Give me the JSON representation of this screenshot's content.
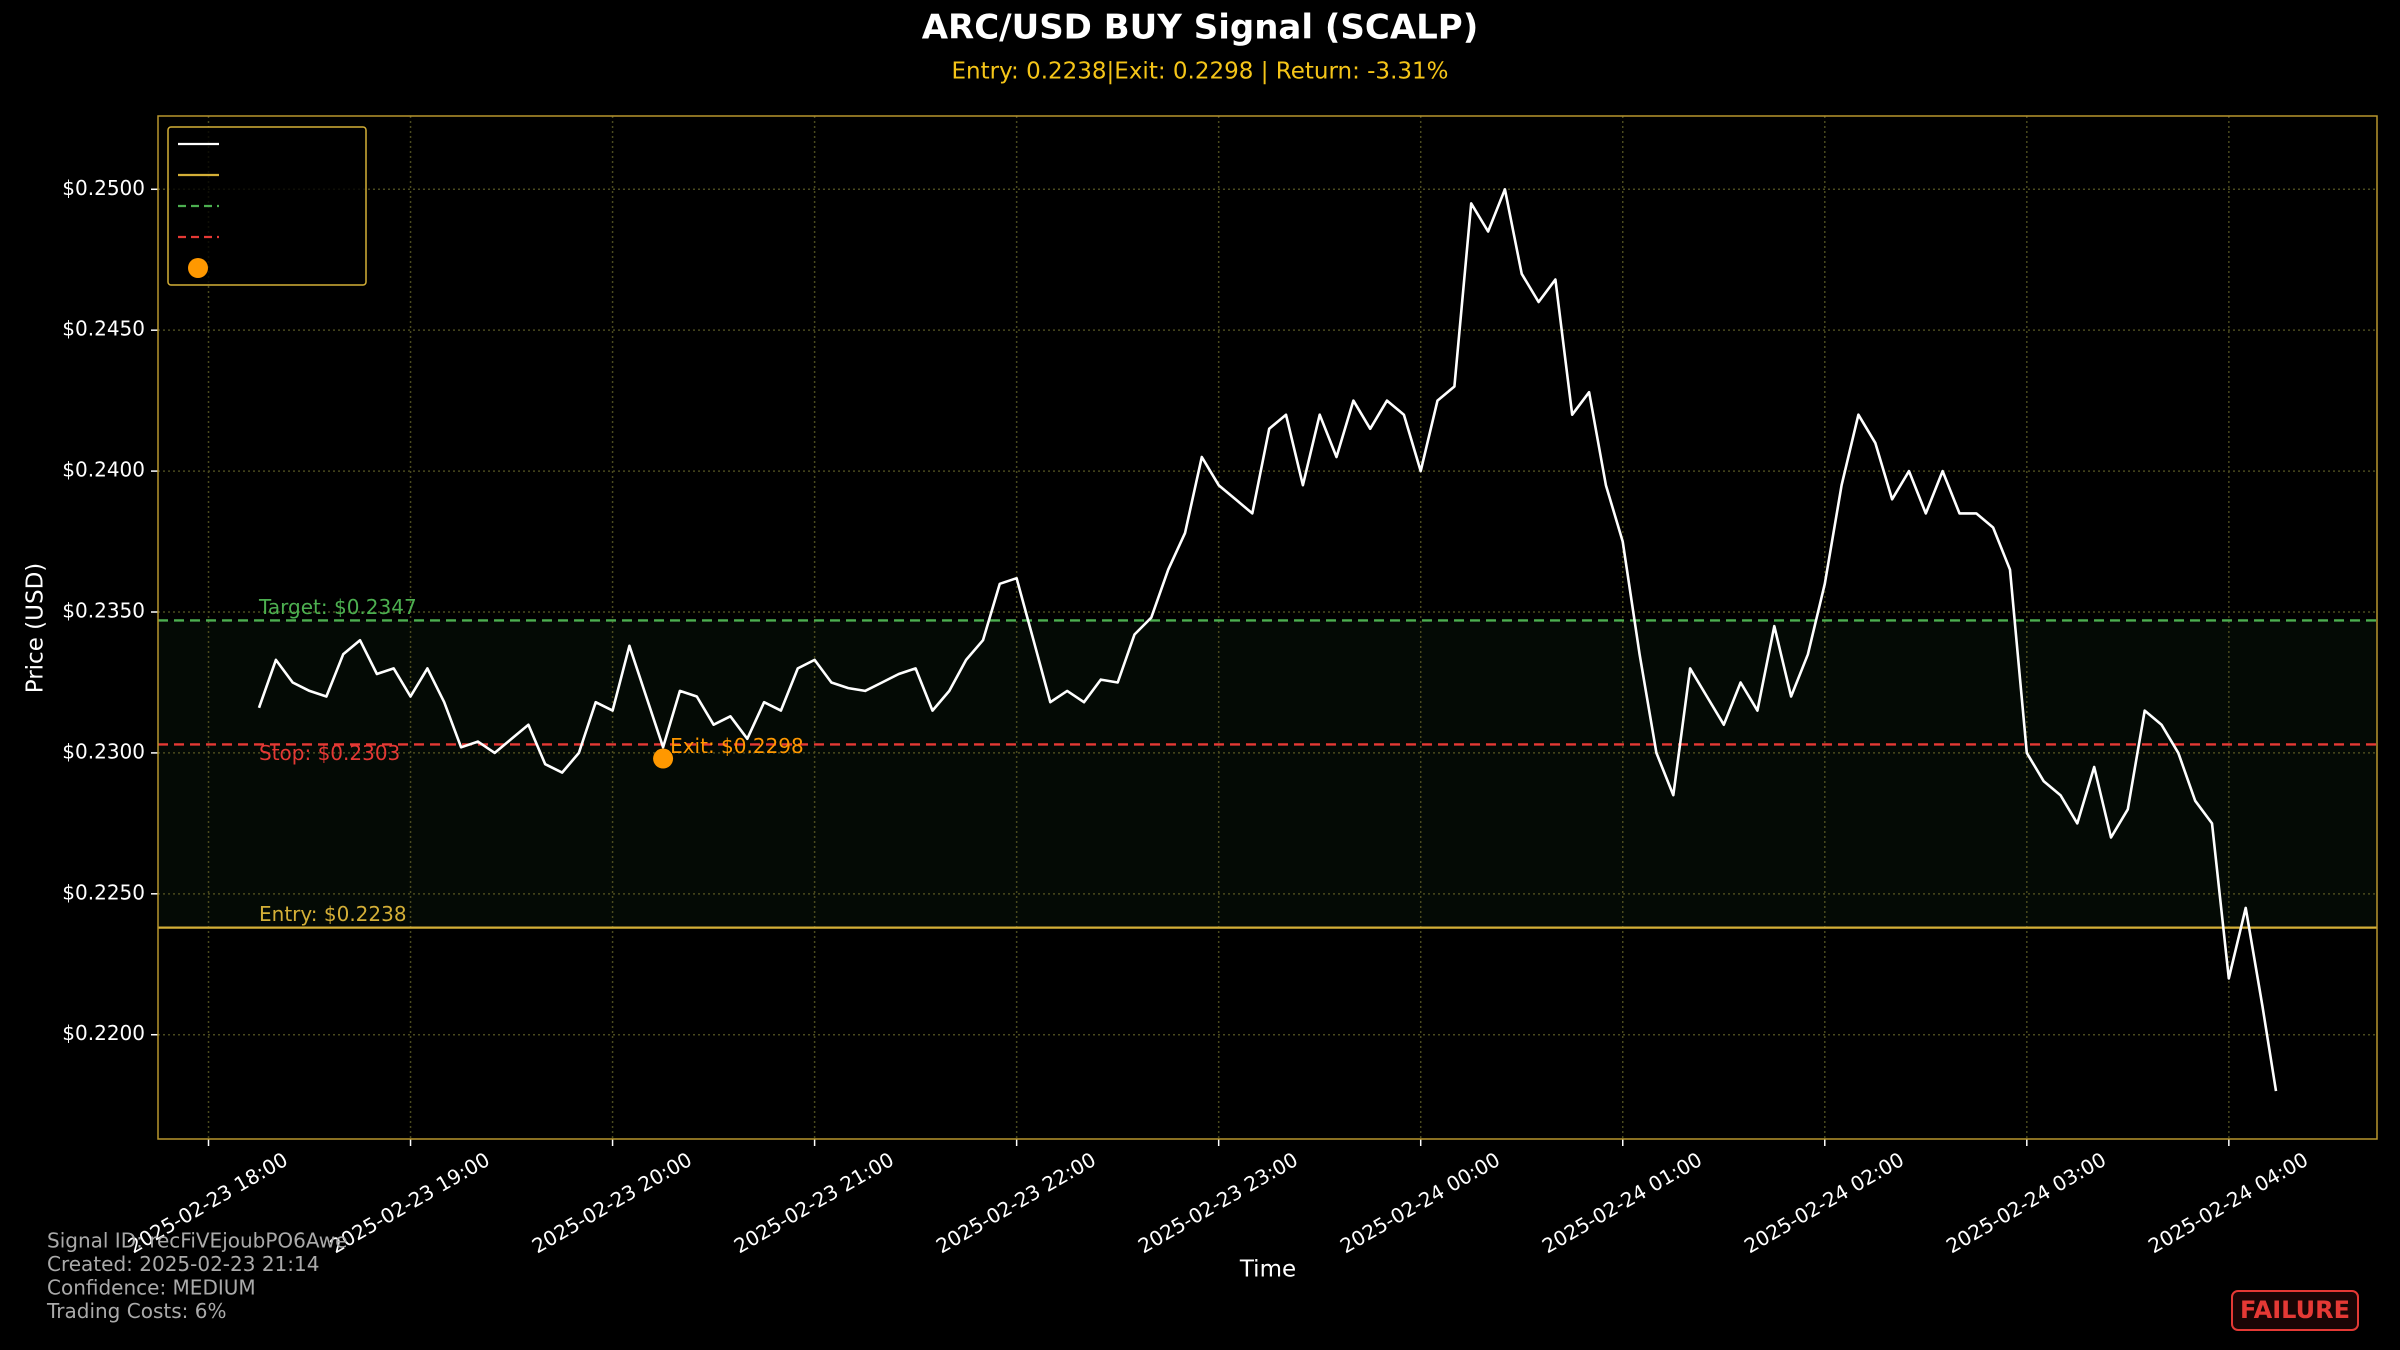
{
  "chart_data": {
    "type": "line",
    "title": "ARC/USD BUY Signal (SCALP)",
    "subtitle": "Entry: 0.2238|Exit: 0.2298 | Return: -3.31%",
    "xlabel": "Time",
    "ylabel": "Price (USD)",
    "xlim": [
      "2025-02-23 17:45",
      "2025-02-24 04:44"
    ],
    "xticks": [
      "2025-02-23 18:00",
      "2025-02-23 19:00",
      "2025-02-23 20:00",
      "2025-02-23 21:00",
      "2025-02-23 22:00",
      "2025-02-23 23:00",
      "2025-02-24 00:00",
      "2025-02-24 01:00",
      "2025-02-24 02:00",
      "2025-02-24 03:00",
      "2025-02-24 04:00"
    ],
    "ylim": [
      0.2163,
      0.2526
    ],
    "yticks": [
      {
        "value": 0.22,
        "label": "$0.2200"
      },
      {
        "value": 0.225,
        "label": "$0.2250"
      },
      {
        "value": 0.23,
        "label": "$0.2300"
      },
      {
        "value": 0.235,
        "label": "$0.2350"
      },
      {
        "value": 0.24,
        "label": "$0.2400"
      },
      {
        "value": 0.245,
        "label": "$0.2450"
      },
      {
        "value": 0.25,
        "label": "$0.2500"
      }
    ],
    "grid": true,
    "legend": "upper left",
    "x": [
      "2025-02-23 18:15",
      "2025-02-23 18:20",
      "2025-02-23 18:25",
      "2025-02-23 18:30",
      "2025-02-23 18:35",
      "2025-02-23 18:40",
      "2025-02-23 18:45",
      "2025-02-23 18:50",
      "2025-02-23 18:55",
      "2025-02-23 19:00",
      "2025-02-23 19:05",
      "2025-02-23 19:10",
      "2025-02-23 19:15",
      "2025-02-23 19:20",
      "2025-02-23 19:25",
      "2025-02-23 19:30",
      "2025-02-23 19:35",
      "2025-02-23 19:40",
      "2025-02-23 19:45",
      "2025-02-23 19:50",
      "2025-02-23 19:55",
      "2025-02-23 20:00",
      "2025-02-23 20:05",
      "2025-02-23 20:10",
      "2025-02-23 20:15",
      "2025-02-23 20:20",
      "2025-02-23 20:25",
      "2025-02-23 20:30",
      "2025-02-23 20:35",
      "2025-02-23 20:40",
      "2025-02-23 20:45",
      "2025-02-23 20:50",
      "2025-02-23 20:55",
      "2025-02-23 21:00",
      "2025-02-23 21:05",
      "2025-02-23 21:10",
      "2025-02-23 21:15",
      "2025-02-23 21:20",
      "2025-02-23 21:25",
      "2025-02-23 21:30",
      "2025-02-23 21:35",
      "2025-02-23 21:40",
      "2025-02-23 21:45",
      "2025-02-23 21:50",
      "2025-02-23 21:55",
      "2025-02-23 22:00",
      "2025-02-23 22:05",
      "2025-02-23 22:10",
      "2025-02-23 22:15",
      "2025-02-23 22:20",
      "2025-02-23 22:25",
      "2025-02-23 22:30",
      "2025-02-23 22:35",
      "2025-02-23 22:40",
      "2025-02-23 22:45",
      "2025-02-23 22:50",
      "2025-02-23 22:55",
      "2025-02-23 23:00",
      "2025-02-23 23:05",
      "2025-02-23 23:10",
      "2025-02-23 23:15",
      "2025-02-23 23:20",
      "2025-02-23 23:25",
      "2025-02-23 23:30",
      "2025-02-23 23:35",
      "2025-02-23 23:40",
      "2025-02-23 23:45",
      "2025-02-23 23:50",
      "2025-02-23 23:55",
      "2025-02-24 00:00",
      "2025-02-24 00:05",
      "2025-02-24 00:10",
      "2025-02-24 00:15",
      "2025-02-24 00:20",
      "2025-02-24 00:25",
      "2025-02-24 00:30",
      "2025-02-24 00:35",
      "2025-02-24 00:40",
      "2025-02-24 00:45",
      "2025-02-24 00:50",
      "2025-02-24 00:55",
      "2025-02-24 01:00",
      "2025-02-24 01:05",
      "2025-02-24 01:10",
      "2025-02-24 01:15",
      "2025-02-24 01:20",
      "2025-02-24 01:25",
      "2025-02-24 01:30",
      "2025-02-24 01:35",
      "2025-02-24 01:40",
      "2025-02-24 01:45",
      "2025-02-24 01:50",
      "2025-02-24 01:55",
      "2025-02-24 02:00",
      "2025-02-24 02:05",
      "2025-02-24 02:10",
      "2025-02-24 02:15",
      "2025-02-24 02:20",
      "2025-02-24 02:25",
      "2025-02-24 02:30",
      "2025-02-24 02:35",
      "2025-02-24 02:40",
      "2025-02-24 02:45",
      "2025-02-24 02:50",
      "2025-02-24 02:55",
      "2025-02-24 03:00",
      "2025-02-24 03:05",
      "2025-02-24 03:10",
      "2025-02-24 03:15",
      "2025-02-24 03:20",
      "2025-02-24 03:25",
      "2025-02-24 03:30",
      "2025-02-24 03:35",
      "2025-02-24 03:40",
      "2025-02-24 03:45",
      "2025-02-24 03:50",
      "2025-02-24 03:55",
      "2025-02-24 04:00",
      "2025-02-24 04:05",
      "2025-02-24 04:10",
      "2025-02-24 04:14"
    ],
    "series": [
      {
        "color": "#ffffff",
        "values": [
          0.2316,
          0.2333,
          0.2325,
          0.2322,
          0.232,
          0.2335,
          0.234,
          0.2328,
          0.233,
          0.232,
          0.233,
          0.2318,
          0.2302,
          0.2304,
          0.23,
          0.2305,
          0.231,
          0.2296,
          0.2293,
          0.23,
          0.2318,
          0.2315,
          0.2338,
          0.232,
          0.2302,
          0.2322,
          0.232,
          0.231,
          0.2313,
          0.2305,
          0.2318,
          0.2315,
          0.233,
          0.2333,
          0.2325,
          0.2323,
          0.2322,
          0.2325,
          0.2328,
          0.233,
          0.2315,
          0.2322,
          0.2333,
          0.234,
          0.236,
          0.2362,
          0.234,
          0.2318,
          0.2322,
          0.2318,
          0.2326,
          0.2325,
          0.2342,
          0.2348,
          0.2365,
          0.2378,
          0.2405,
          0.2395,
          0.239,
          0.2385,
          0.2415,
          0.242,
          0.2395,
          0.242,
          0.2405,
          0.2425,
          0.2415,
          0.2425,
          0.242,
          0.24,
          0.2425,
          0.243,
          0.2495,
          0.2485,
          0.25,
          0.247,
          0.246,
          0.2468,
          0.242,
          0.2428,
          0.2395,
          0.2375,
          0.2335,
          0.23,
          0.2285,
          0.233,
          0.232,
          0.231,
          0.2325,
          0.2315,
          0.2345,
          0.232,
          0.2335,
          0.236,
          0.2395,
          0.242,
          0.241,
          0.239,
          0.24,
          0.2385,
          0.24,
          0.2385,
          0.2385,
          0.238,
          0.2365,
          0.23,
          0.229,
          0.2285,
          0.2275,
          0.2295,
          0.227,
          0.228,
          0.2315,
          0.231,
          0.23,
          0.2283,
          0.2275,
          0.222,
          0.2245,
          0.221,
          0.218
        ]
      }
    ],
    "levels": {
      "target": {
        "value": 0.2347,
        "label": "Target: $0.2347",
        "color": "#4caf50"
      },
      "stop": {
        "value": 0.2303,
        "label": "Stop: $0.2303",
        "color": "#e53935"
      },
      "entry": {
        "value": 0.2238,
        "label": "Entry: $0.2238",
        "color": "#d4af37"
      }
    },
    "exit": {
      "x": "2025-02-23 20:15",
      "value": 0.2298,
      "label": "Exit: $0.2298",
      "color": "#ff9800"
    },
    "footer": [
      "Signal ID: recFiVEjoubPO6Awe",
      "Created: 2025-02-23 21:14",
      "Confidence: MEDIUM",
      "Trading Costs: 6%"
    ],
    "status": "FAILURE"
  }
}
